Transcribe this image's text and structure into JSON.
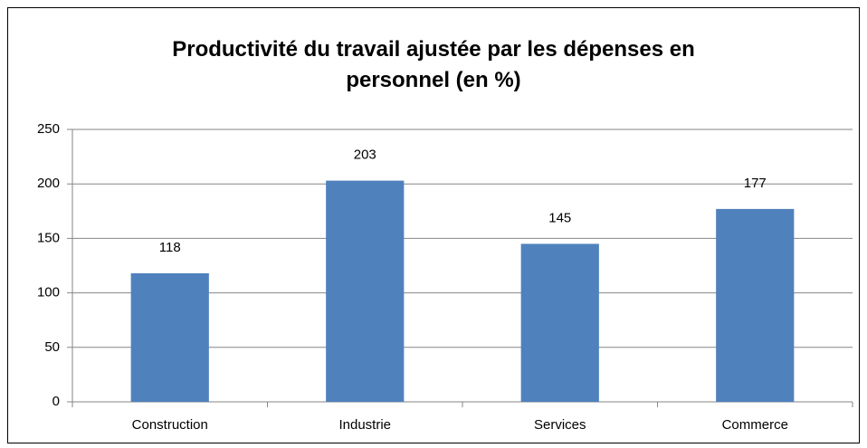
{
  "chart_data": {
    "type": "bar",
    "title": "Productivité du travail ajustée par les dépenses en personnel (en %)",
    "categories": [
      "Construction",
      "Industrie",
      "Services",
      "Commerce"
    ],
    "values": [
      118,
      203,
      145,
      177
    ],
    "color": "#4f81bd",
    "ylim": [
      0,
      250
    ],
    "yticks": [
      0,
      50,
      100,
      150,
      200,
      250
    ],
    "grid": true
  }
}
